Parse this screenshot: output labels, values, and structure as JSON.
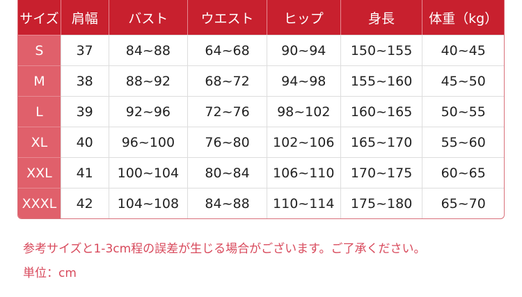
{
  "table": {
    "headers": [
      "サイズ",
      "肩幅",
      "バスト",
      "ウエスト",
      "ヒップ",
      "身長",
      "体重（kg）"
    ],
    "rows": [
      [
        "S",
        "37",
        "84~88",
        "64~68",
        "90~94",
        "150~155",
        "40~45"
      ],
      [
        "M",
        "38",
        "88~92",
        "68~72",
        "94~98",
        "155~160",
        "45~50"
      ],
      [
        "L",
        "39",
        "92~96",
        "72~76",
        "98~102",
        "160~165",
        "50~55"
      ],
      [
        "XL",
        "40",
        "96~100",
        "76~80",
        "102~106",
        "165~170",
        "55~60"
      ],
      [
        "XXL",
        "41",
        "100~104",
        "80~84",
        "106~110",
        "170~175",
        "60~65"
      ],
      [
        "XXXL",
        "42",
        "104~108",
        "84~88",
        "110~114",
        "175~180",
        "65~70"
      ]
    ]
  },
  "notes": {
    "disclaimer": "参考サイズと1-3cm程の誤差が生じる場合がございます。ご了承ください。",
    "unit": "単位：cm"
  },
  "colors": {
    "header": "#c8202e",
    "size_column": "#e0606b",
    "note_text": "#d84a5c"
  }
}
